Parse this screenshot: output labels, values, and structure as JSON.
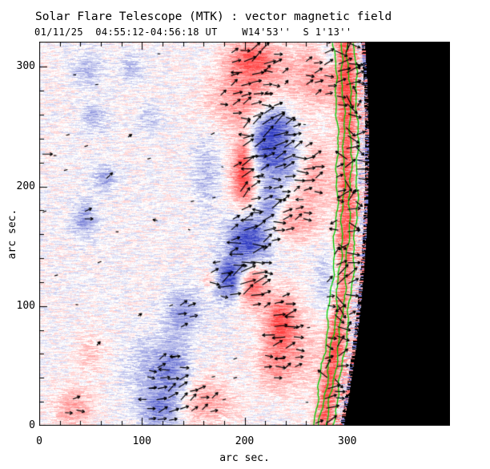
{
  "header": {
    "title": "Solar Flare Telescope (MTK) : vector magnetic field",
    "subtitle": "01/11/25  04:55:12-04:56:18 UT    W14'53''  S 1'13''"
  },
  "axes": {
    "xlabel": "arc sec.",
    "ylabel": "arc sec.",
    "x_ticks": [
      0,
      100,
      200,
      300
    ],
    "y_ticks": [
      0,
      100,
      200,
      300
    ],
    "minor_step": 20,
    "x_range": [
      0,
      400
    ],
    "y_range": [
      0,
      321
    ]
  },
  "chart_data": {
    "type": "heatmap",
    "title": "Solar Flare Telescope (MTK) : vector magnetic field",
    "subtitle": "01/11/25  04:55:12-04:56:18 UT    W14'53''  S 1'13''",
    "xlabel": "arc sec.",
    "ylabel": "arc sec.",
    "x_range": [
      0,
      400
    ],
    "y_range": [
      0,
      321
    ],
    "grid": false,
    "colors": {
      "background": "#ffffff",
      "positive_max": "#ff4343",
      "negative_max": "#323ec3",
      "contour": "#00cc00",
      "off_limb": "#000000",
      "vector": "#000000",
      "frame": "#000000"
    },
    "limb": {
      "radius": 1100,
      "center": [
        -782,
        230
      ]
    },
    "limb_band": {
      "offset": 17,
      "sigma": 7,
      "amp": 0.8
    },
    "contour_offsets": [
      8,
      14.5,
      21,
      27.5
    ],
    "regions": [
      {
        "polarity": "positive",
        "x": 199,
        "y": 212,
        "sx": 8,
        "sy": 22,
        "amp": 1.0
      },
      {
        "polarity": "positive",
        "x": 196,
        "y": 272,
        "sx": 22,
        "sy": 16,
        "amp": 0.55
      },
      {
        "polarity": "positive",
        "x": 210,
        "y": 300,
        "sx": 20,
        "sy": 12,
        "amp": 0.45
      },
      {
        "polarity": "positive",
        "x": 207,
        "y": 310,
        "sx": 16,
        "sy": 10,
        "amp": 0.5
      },
      {
        "polarity": "positive",
        "x": 206,
        "y": 118,
        "sx": 10,
        "sy": 13,
        "amp": 0.9
      },
      {
        "polarity": "positive",
        "x": 167,
        "y": 122,
        "sx": 6,
        "sy": 6,
        "amp": 0.4
      },
      {
        "polarity": "positive",
        "x": 233,
        "y": 85,
        "sx": 11,
        "sy": 18,
        "amp": 0.5
      },
      {
        "polarity": "positive",
        "x": 228,
        "y": 50,
        "sx": 12,
        "sy": 14,
        "amp": 0.4
      },
      {
        "polarity": "positive",
        "x": 162,
        "y": 20,
        "sx": 20,
        "sy": 14,
        "amp": 0.45
      },
      {
        "polarity": "positive",
        "x": 33,
        "y": 15,
        "sx": 14,
        "sy": 12,
        "amp": 0.45
      },
      {
        "polarity": "positive",
        "x": 50,
        "y": 60,
        "sx": 10,
        "sy": 12,
        "amp": 0.28
      },
      {
        "polarity": "positive",
        "x": 272,
        "y": 292,
        "sx": 22,
        "sy": 20,
        "amp": 0.5
      },
      {
        "polarity": "positive",
        "x": 265,
        "y": 210,
        "sx": 16,
        "sy": 20,
        "amp": 0.5
      },
      {
        "polarity": "positive",
        "x": 245,
        "y": 170,
        "sx": 20,
        "sy": 12,
        "amp": 0.45
      },
      {
        "polarity": "positive",
        "x": 255,
        "y": 60,
        "sx": 18,
        "sy": 25,
        "amp": 0.3
      },
      {
        "polarity": "positive",
        "x": 237,
        "y": 88,
        "sx": 10,
        "sy": 14,
        "amp": 0.4
      },
      {
        "polarity": "negative",
        "x": 220,
        "y": 237,
        "sx": 12,
        "sy": 18,
        "amp": 0.85
      },
      {
        "polarity": "negative",
        "x": 204,
        "y": 156,
        "sx": 14,
        "sy": 16,
        "amp": 1.0
      },
      {
        "polarity": "negative",
        "x": 186,
        "y": 122,
        "sx": 11,
        "sy": 12,
        "amp": 0.95
      },
      {
        "polarity": "negative",
        "x": 140,
        "y": 95,
        "sx": 12,
        "sy": 14,
        "amp": 0.5
      },
      {
        "polarity": "negative",
        "x": 130,
        "y": 45,
        "sx": 12,
        "sy": 18,
        "amp": 0.55
      },
      {
        "polarity": "negative",
        "x": 118,
        "y": 12,
        "sx": 14,
        "sy": 12,
        "amp": 0.5
      },
      {
        "polarity": "negative",
        "x": 105,
        "y": 45,
        "sx": 15,
        "sy": 20,
        "amp": 0.3
      },
      {
        "polarity": "negative",
        "x": 243,
        "y": 220,
        "sx": 12,
        "sy": 14,
        "amp": 0.6
      },
      {
        "polarity": "negative",
        "x": 226,
        "y": 185,
        "sx": 8,
        "sy": 14,
        "amp": 0.55
      },
      {
        "polarity": "negative",
        "x": 162,
        "y": 210,
        "sx": 9,
        "sy": 22,
        "amp": 0.3
      },
      {
        "polarity": "negative",
        "x": 235,
        "y": 252,
        "sx": 10,
        "sy": 10,
        "amp": 0.5
      },
      {
        "polarity": "negative",
        "x": 64,
        "y": 207,
        "sx": 8,
        "sy": 8,
        "amp": 0.45
      },
      {
        "polarity": "negative",
        "x": 44,
        "y": 172,
        "sx": 9,
        "sy": 11,
        "amp": 0.45
      },
      {
        "polarity": "negative",
        "x": 47,
        "y": 298,
        "sx": 10,
        "sy": 10,
        "amp": 0.35
      },
      {
        "polarity": "negative",
        "x": 90,
        "y": 298,
        "sx": 8,
        "sy": 8,
        "amp": 0.3
      },
      {
        "polarity": "negative",
        "x": 53,
        "y": 257,
        "sx": 9,
        "sy": 9,
        "amp": 0.35
      },
      {
        "polarity": "negative",
        "x": 107,
        "y": 256,
        "sx": 8,
        "sy": 8,
        "amp": 0.3
      },
      {
        "polarity": "negative",
        "x": 285,
        "y": 120,
        "sx": 10,
        "sy": 20,
        "amp": 0.38
      },
      {
        "polarity": "negative",
        "x": 285,
        "y": 310,
        "sx": 8,
        "sy": 8,
        "amp": 0.4
      },
      {
        "polarity": "negative",
        "x": 310,
        "y": 220,
        "sx": 6,
        "sy": 15,
        "amp": 0.4
      }
    ],
    "noise": {
      "seed": 12345,
      "run_min": 2,
      "run_max": 10,
      "amp": 0.55,
      "micro": 0.2,
      "strip_boost": 2.4,
      "mid_boost": 1.5,
      "base_scale": 0.8
    },
    "vectors": {
      "seed": 77,
      "col_step": 10.2,
      "row_step": 8.8,
      "threshold": 0.36,
      "max_len": 20,
      "sparse_prob": 0.045,
      "extra": [
        {
          "x": 3,
          "y": 227,
          "angle_deg": 0,
          "len": 13
        }
      ]
    },
    "ticks": {
      "major_len": 9,
      "minor_len": 5
    }
  }
}
